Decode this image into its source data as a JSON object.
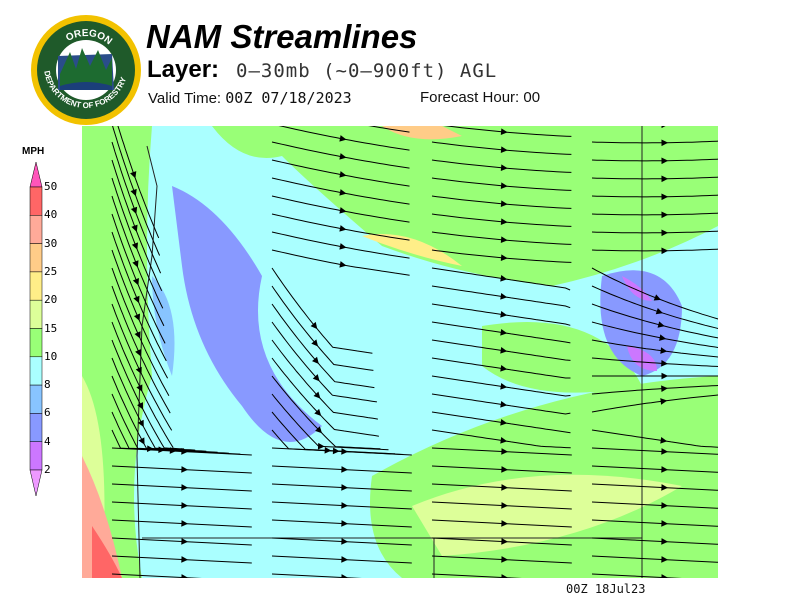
{
  "logo": {
    "text_top": "OREGON",
    "text_bottom": "DEPARTMENT OF FORESTRY"
  },
  "header": {
    "title": "NAM Streamlines",
    "layer_label": "Layer:",
    "layer_value": "0–30mb (~0–900ft) AGL",
    "valid_time_label": "Valid Time:",
    "valid_time_value": "00Z 07/18/2023",
    "forecast_hour_label": "Forecast Hour:",
    "forecast_hour_value": "00"
  },
  "legend": {
    "unit": "MPH",
    "ticks": [
      "50",
      "40",
      "30",
      "25",
      "20",
      "15",
      "10",
      "8",
      "6",
      "4",
      "2"
    ],
    "colors": [
      "#ff6666",
      "#ffaa99",
      "#ffcc88",
      "#ffee88",
      "#ddff99",
      "#99ff77",
      "#aaffff",
      "#88c4ff",
      "#8899ff",
      "#cc77ff"
    ],
    "top_arrow_color": "#ff55bb",
    "bottom_arrow_color": "#ee99ff"
  },
  "map": {
    "field": "wind streamlines",
    "colors": {
      "calm": "#8899ff",
      "light": "#aaffff",
      "moderate": "#99ff77",
      "fresh": "#ddff99",
      "strong": "#ffcc88"
    }
  },
  "footer": {
    "stamp": "00Z 18Jul23"
  }
}
